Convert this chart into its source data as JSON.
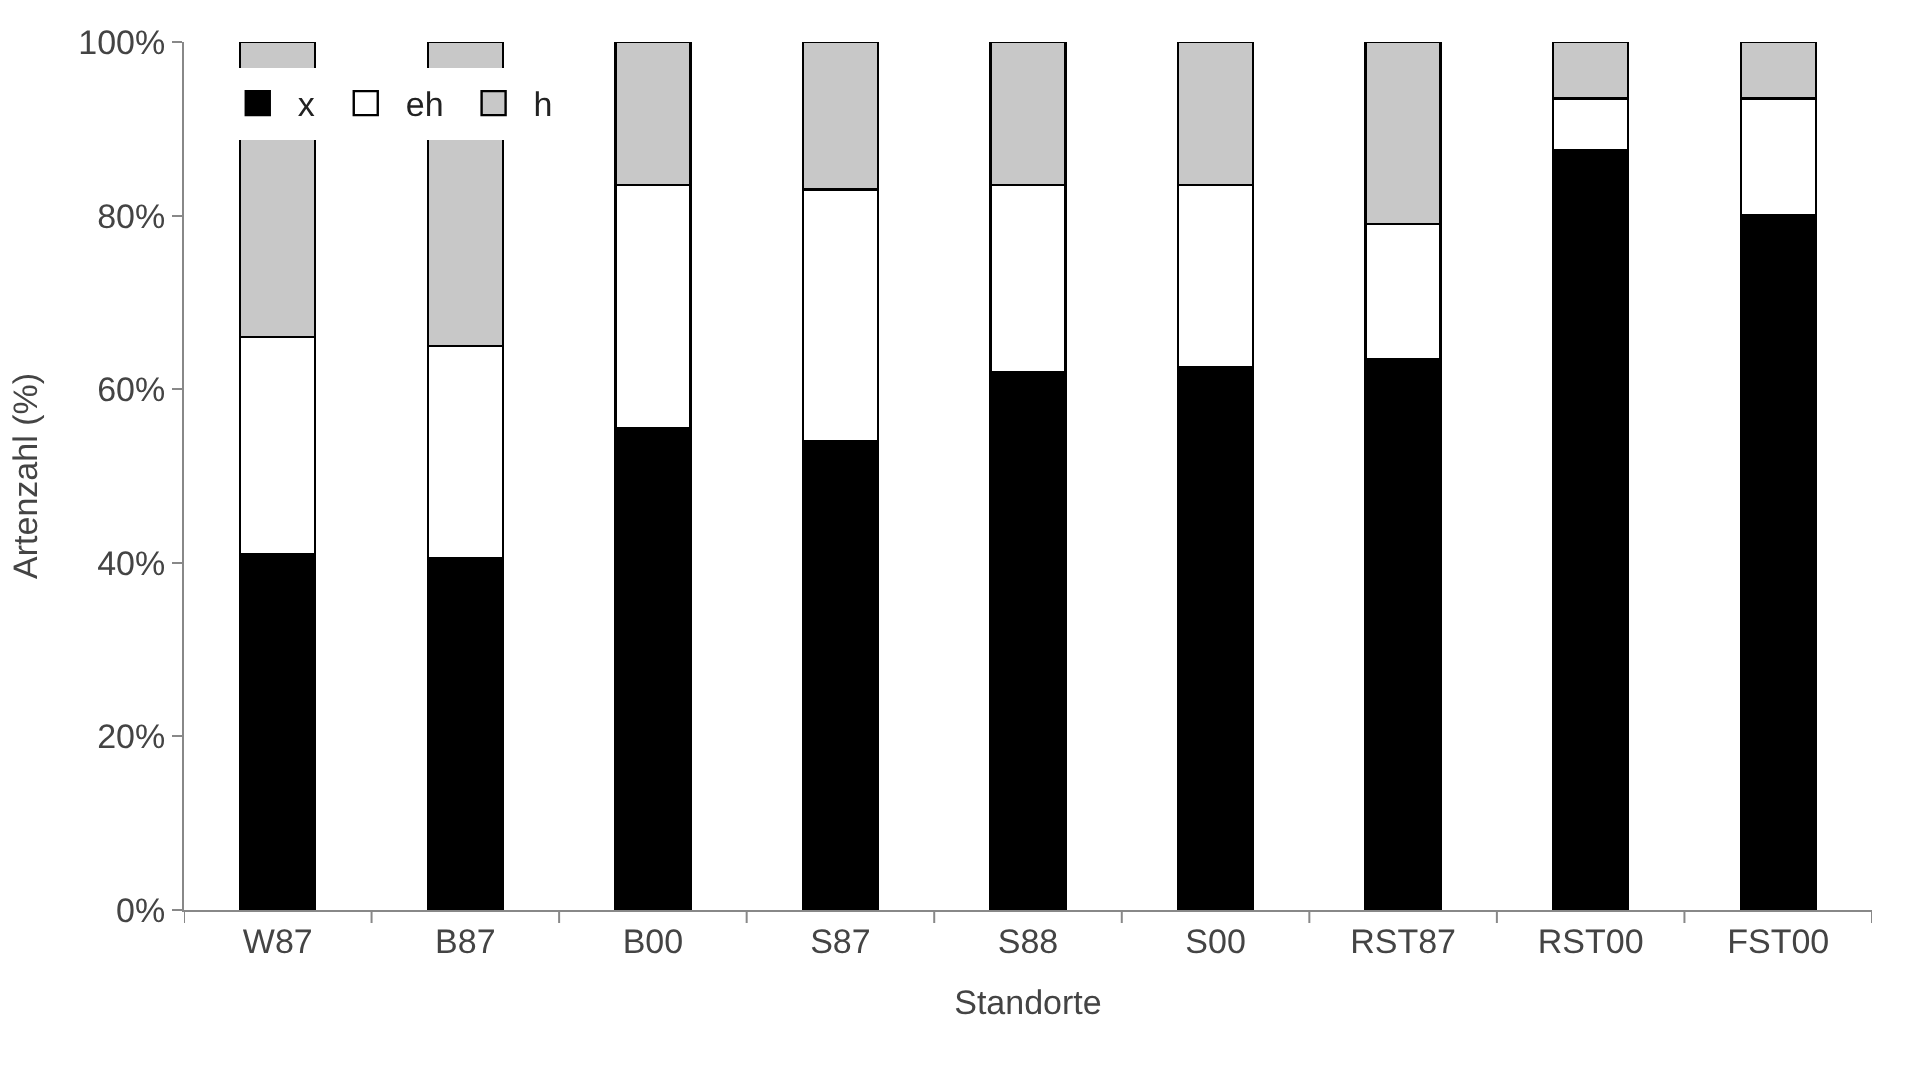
{
  "chart_data": {
    "type": "bar",
    "stacked": true,
    "xlabel": "Standorte",
    "ylabel": "Artenzahl (%)",
    "categories": [
      "W87",
      "B87",
      "B00",
      "S87",
      "S88",
      "S00",
      "RST87",
      "RST00",
      "FST00"
    ],
    "series": [
      {
        "name": "x",
        "color": "#000000",
        "values": [
          41,
          40.5,
          55.5,
          54,
          62,
          62.5,
          63.5,
          87.5,
          80
        ]
      },
      {
        "name": "eh",
        "color": "#ffffff",
        "values": [
          25,
          24.5,
          28,
          29,
          21.5,
          21,
          15.5,
          6,
          13.5
        ]
      },
      {
        "name": "h",
        "color": "#c8c8c8",
        "values": [
          34,
          35,
          16.5,
          17,
          16.5,
          16.5,
          21,
          6.5,
          6.5
        ]
      }
    ],
    "ylim": [
      0,
      100
    ],
    "yticks": [
      {
        "value": 0,
        "label": "0%"
      },
      {
        "value": 20,
        "label": "20%"
      },
      {
        "value": 40,
        "label": "40%"
      },
      {
        "value": 60,
        "label": "60%"
      },
      {
        "value": 80,
        "label": "80%"
      },
      {
        "value": 100,
        "label": "100%"
      }
    ],
    "legend": "top left"
  }
}
